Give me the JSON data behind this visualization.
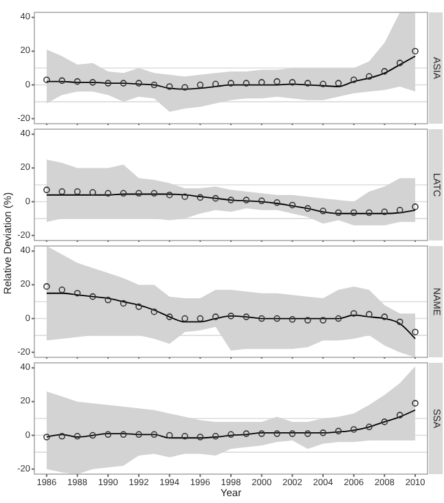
{
  "chart_data": [
    {
      "type": "line",
      "title": "ASIA",
      "x": [
        1986,
        1987,
        1988,
        1989,
        1990,
        1991,
        1992,
        1993,
        1994,
        1995,
        1996,
        1997,
        1998,
        1999,
        2000,
        2001,
        2002,
        2003,
        2004,
        2005,
        2006,
        2007,
        2008,
        2009,
        2010
      ],
      "xlim": [
        1985.2,
        2010.8
      ],
      "xticks": [
        1986,
        1988,
        1990,
        1992,
        1994,
        1996,
        1998,
        2000,
        2002,
        2004,
        2006,
        2008,
        2010
      ],
      "ylim": [
        -23,
        43
      ],
      "yticks": [
        -20,
        0,
        20,
        40
      ],
      "tick_labels": "y",
      "grid": false,
      "ref_lines": [
        {
          "axis": "y",
          "value": -10,
          "color": "#dcdcdc"
        },
        {
          "axis": "y",
          "value": 0,
          "color": "#dcdcdc"
        },
        {
          "axis": "y",
          "value": 10,
          "color": "#dcdcdc"
        }
      ],
      "series": [
        {
          "color": "#000000",
          "values": [
            2,
            2,
            1.5,
            1.5,
            1,
            1,
            0.5,
            0,
            -2,
            -2.5,
            -2,
            -1,
            0,
            0,
            0,
            0,
            0.5,
            0,
            -0.5,
            -1,
            2,
            4,
            7,
            12,
            17
          ],
          "lower": [
            -11,
            -6,
            -4,
            -4,
            -6,
            -10,
            -7,
            -8,
            -16,
            -14,
            -13,
            -11,
            -9,
            -8,
            -8,
            -7,
            -8,
            -9,
            -9,
            -7,
            -5,
            -4,
            -3,
            -1,
            -4
          ],
          "upper": [
            21,
            17,
            12,
            13,
            8,
            7,
            10,
            7,
            6,
            5,
            6,
            7,
            8,
            8,
            9,
            9,
            10,
            10,
            10,
            10,
            10,
            14,
            25,
            43,
            43
          ]
        },
        {
          "type": "scatter",
          "marker": "circle",
          "color": "#333333",
          "values": [
            3,
            2.5,
            2,
            1.5,
            1,
            1,
            1,
            0,
            -1,
            -1.5,
            0,
            0.5,
            1,
            1,
            1.5,
            2,
            1.5,
            1,
            0.5,
            1,
            3,
            5,
            8,
            13,
            20
          ]
        }
      ]
    },
    {
      "type": "line",
      "title": "LATC",
      "ylabel": "Relative Deviation (%)",
      "x": [
        1986,
        1987,
        1988,
        1989,
        1990,
        1991,
        1992,
        1993,
        1994,
        1995,
        1996,
        1997,
        1998,
        1999,
        2000,
        2001,
        2002,
        2003,
        2004,
        2005,
        2006,
        2007,
        2008,
        2009,
        2010
      ],
      "xlim": [
        1985.2,
        2010.8
      ],
      "xticks": [
        1986,
        1988,
        1990,
        1992,
        1994,
        1996,
        1998,
        2000,
        2002,
        2004,
        2006,
        2008,
        2010
      ],
      "ylim": [
        -23,
        43
      ],
      "yticks": [
        -20,
        0,
        20,
        40
      ],
      "tick_labels": "y",
      "grid": false,
      "ref_lines": [
        {
          "axis": "y",
          "value": -10,
          "color": "#dcdcdc"
        },
        {
          "axis": "y",
          "value": 0,
          "color": "#dcdcdc"
        },
        {
          "axis": "y",
          "value": 10,
          "color": "#dcdcdc"
        }
      ],
      "series": [
        {
          "color": "#000000",
          "values": [
            4,
            4,
            4,
            4,
            4,
            4.5,
            4.5,
            4.5,
            4.5,
            4,
            3,
            2,
            1,
            0.5,
            0,
            -1,
            -2.5,
            -4,
            -6,
            -7,
            -7,
            -7,
            -7,
            -6.5,
            -5
          ],
          "lower": [
            -12,
            -10,
            -10,
            -10,
            -10,
            -10,
            -10,
            -10,
            -11,
            -10,
            -7,
            -5,
            -6,
            -4,
            -5,
            -5,
            -7,
            -9,
            -13,
            -11,
            -14,
            -14,
            -14,
            -12,
            -12
          ],
          "upper": [
            25,
            23,
            20,
            20,
            20,
            22,
            14,
            13,
            11,
            8,
            8,
            9,
            7,
            6,
            5,
            4,
            4,
            3,
            2,
            1,
            0,
            6,
            9,
            14,
            14
          ]
        },
        {
          "type": "scatter",
          "marker": "circle",
          "color": "#333333",
          "values": [
            7,
            6,
            6,
            5.5,
            5,
            5,
            5,
            5,
            4,
            3,
            2.5,
            2,
            1,
            1,
            0.5,
            -0.5,
            -2,
            -4,
            -5.5,
            -6.5,
            -6.5,
            -6.5,
            -6,
            -5,
            -3
          ]
        }
      ]
    },
    {
      "type": "line",
      "title": "NAME",
      "x": [
        1986,
        1987,
        1988,
        1989,
        1990,
        1991,
        1992,
        1993,
        1994,
        1995,
        1996,
        1997,
        1998,
        1999,
        2000,
        2001,
        2002,
        2003,
        2004,
        2005,
        2006,
        2007,
        2008,
        2009,
        2010
      ],
      "xlim": [
        1985.2,
        2010.8
      ],
      "xticks": [
        1986,
        1988,
        1990,
        1992,
        1994,
        1996,
        1998,
        2000,
        2002,
        2004,
        2006,
        2008,
        2010
      ],
      "ylim": [
        -23,
        43
      ],
      "yticks": [
        -20,
        0,
        20,
        40
      ],
      "tick_labels": "y",
      "grid": false,
      "ref_lines": [
        {
          "axis": "y",
          "value": -10,
          "color": "#dcdcdc"
        },
        {
          "axis": "y",
          "value": 0,
          "color": "#dcdcdc"
        },
        {
          "axis": "y",
          "value": 10,
          "color": "#dcdcdc"
        }
      ],
      "series": [
        {
          "color": "#000000",
          "values": [
            15,
            15,
            14,
            13,
            12,
            10,
            8,
            5,
            1,
            -2,
            -2,
            0,
            1.5,
            1,
            0,
            0,
            0,
            0,
            0,
            0,
            2,
            1,
            0,
            -3,
            -12
          ],
          "lower": [
            -13,
            -12,
            -11,
            -10,
            -10,
            -10,
            -10,
            -12,
            -15,
            -8,
            -7,
            -5,
            -19,
            -18,
            -18,
            -18,
            -18,
            -17,
            -13,
            -13,
            -12,
            -10,
            -16,
            -20,
            -23
          ],
          "upper": [
            43,
            38,
            33,
            30,
            27,
            24,
            20,
            20,
            13,
            12,
            12,
            17,
            17,
            16,
            15,
            15,
            14,
            13,
            12,
            17,
            19,
            17,
            8,
            3,
            3
          ]
        },
        {
          "type": "scatter",
          "marker": "circle",
          "color": "#333333",
          "values": [
            19,
            17,
            15,
            13,
            11,
            9,
            7,
            4,
            1,
            0,
            0,
            1,
            1.5,
            1,
            0,
            0,
            -0.5,
            -1,
            -1,
            0,
            3,
            2.5,
            1,
            -2,
            -8
          ]
        }
      ]
    },
    {
      "type": "line",
      "title": "SSA",
      "xlabel": "Year",
      "x": [
        1986,
        1987,
        1988,
        1989,
        1990,
        1991,
        1992,
        1993,
        1994,
        1995,
        1996,
        1997,
        1998,
        1999,
        2000,
        2001,
        2002,
        2003,
        2004,
        2005,
        2006,
        2007,
        2008,
        2009,
        2010
      ],
      "xlim": [
        1985.2,
        2010.8
      ],
      "xticks": [
        1986,
        1988,
        1990,
        1992,
        1994,
        1996,
        1998,
        2000,
        2002,
        2004,
        2006,
        2008,
        2010
      ],
      "ylim": [
        -23,
        43
      ],
      "yticks": [
        -20,
        0,
        20,
        40
      ],
      "grid": false,
      "ref_lines": [
        {
          "axis": "y",
          "value": -10,
          "color": "#dcdcdc"
        },
        {
          "axis": "y",
          "value": 0,
          "color": "#dcdcdc"
        },
        {
          "axis": "y",
          "value": 10,
          "color": "#dcdcdc"
        }
      ],
      "series": [
        {
          "color": "#000000",
          "values": [
            -1,
            0.5,
            -1,
            0,
            1,
            1,
            0.5,
            0.5,
            -1.5,
            -1.5,
            -1.5,
            -1,
            0,
            0.5,
            1.5,
            1.5,
            1.5,
            1.5,
            1.5,
            2,
            3,
            5,
            8,
            11,
            15
          ],
          "lower": [
            -20,
            -22,
            -23,
            -20,
            -19,
            -18,
            -12,
            -11,
            -13,
            -11,
            -11,
            -12,
            -8,
            -7,
            -6,
            -4,
            -3,
            -8,
            -5,
            -4,
            -4,
            -3,
            -3,
            -3,
            -3
          ],
          "upper": [
            26,
            23,
            20,
            19,
            18,
            17,
            16,
            15,
            13,
            11,
            9,
            8,
            8,
            8,
            8,
            11,
            8,
            8,
            10,
            11,
            13,
            18,
            24,
            31,
            41
          ]
        },
        {
          "type": "scatter",
          "marker": "circle",
          "color": "#333333",
          "values": [
            -1,
            -0.5,
            -0.5,
            0,
            0.5,
            0.5,
            0.5,
            0.5,
            0,
            -0.5,
            -1,
            -0.5,
            0.5,
            1,
            1,
            1,
            1,
            1,
            1.5,
            2.5,
            3.5,
            5,
            8,
            12,
            19
          ]
        }
      ]
    }
  ]
}
